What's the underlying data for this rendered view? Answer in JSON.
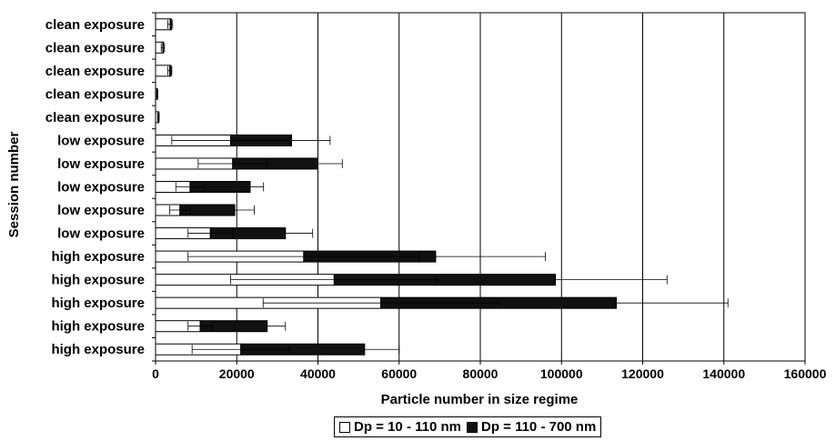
{
  "chart_data": {
    "type": "bar",
    "orientation": "horizontal",
    "stacked": true,
    "title": "",
    "xlabel": "Particle number in size regime",
    "ylabel": "Session number",
    "xlim": [
      0,
      160000
    ],
    "x_ticks": [
      "0",
      "20000",
      "40000",
      "60000",
      "80000",
      "100000",
      "120000",
      "140000",
      "160000"
    ],
    "grid": "vertical",
    "legend_position": "bottom",
    "categories": [
      "clean exposure",
      "clean exposure",
      "clean exposure",
      "clean exposure",
      "clean exposure",
      "low exposure",
      "low exposure",
      "low exposure",
      "low exposure",
      "low exposure",
      "high exposure",
      "high exposure",
      "high exposure",
      "high exposure",
      "high exposure"
    ],
    "series": [
      {
        "name": "Dp = 10 - 110 nm",
        "color": "#ffffff",
        "values": [
          3600,
          1800,
          3500,
          400,
          700,
          18500,
          19000,
          8500,
          6000,
          13500,
          36500,
          44000,
          55500,
          11000,
          21000
        ],
        "error": [
          600,
          400,
          500,
          150,
          200,
          14500,
          8500,
          3500,
          2500,
          5500,
          28500,
          25500,
          29000,
          3000,
          12000
        ]
      },
      {
        "name": "Dp = 110 - 700 nm",
        "color": "#111111",
        "values": [
          300,
          150,
          300,
          50,
          100,
          15000,
          21000,
          14800,
          13500,
          18500,
          32500,
          54500,
          58000,
          16500,
          30500
        ],
        "error": [
          0,
          0,
          0,
          0,
          0,
          9500,
          6000,
          3300,
          4800,
          6700,
          27000,
          27500,
          27500,
          4500,
          8500
        ]
      }
    ]
  }
}
